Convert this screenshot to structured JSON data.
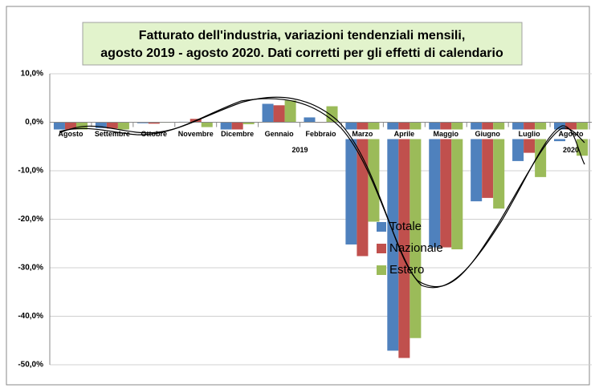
{
  "chart_data": {
    "type": "bar",
    "title": [
      "Fatturato dell'industria, variazioni tendenziali mensili,",
      "agosto 2019 - agosto 2020. Dati corretti per gli effetti di calendario"
    ],
    "categories": [
      "Agosto",
      "Settembre",
      "Ottobre",
      "Novembre",
      "Dicembre",
      "Gennaio",
      "Febbraio",
      "Marzo",
      "Aprile",
      "Maggio",
      "Giugno",
      "Luglio",
      "Agosto"
    ],
    "year_labels": [
      "2019",
      "2020"
    ],
    "series": [
      {
        "name": "Totale",
        "color": "#4f81bd",
        "values": [
          -2.1,
          -1.2,
          -0.2,
          0.1,
          -1.5,
          3.8,
          1.0,
          -25.2,
          -47.1,
          -25.8,
          -16.3,
          -8.0,
          -3.9
        ]
      },
      {
        "name": "Nazionale",
        "color": "#c0504d",
        "values": [
          -2.0,
          -1.3,
          -0.3,
          0.7,
          -2.0,
          3.5,
          -0.1,
          -27.6,
          -48.6,
          -25.8,
          -15.6,
          -6.3,
          -2.4
        ]
      },
      {
        "name": "Estero",
        "color": "#9bbb59",
        "values": [
          -1.6,
          -2.0,
          -0.1,
          -1.0,
          -0.4,
          4.5,
          3.3,
          -20.5,
          -44.5,
          -26.2,
          -17.8,
          -11.3,
          -6.9
        ]
      }
    ],
    "ylim": [
      -50,
      10
    ],
    "yticks": [
      {
        "value": 10,
        "label": "10,0%"
      },
      {
        "value": 0,
        "label": "0,0%"
      },
      {
        "value": -10,
        "label": "-10,0%"
      },
      {
        "value": -20,
        "label": "-20,0%"
      },
      {
        "value": -30,
        "label": "-30,0%"
      },
      {
        "value": -40,
        "label": "-40,0%"
      },
      {
        "value": -50,
        "label": "-50,0%"
      }
    ],
    "grid": true
  }
}
